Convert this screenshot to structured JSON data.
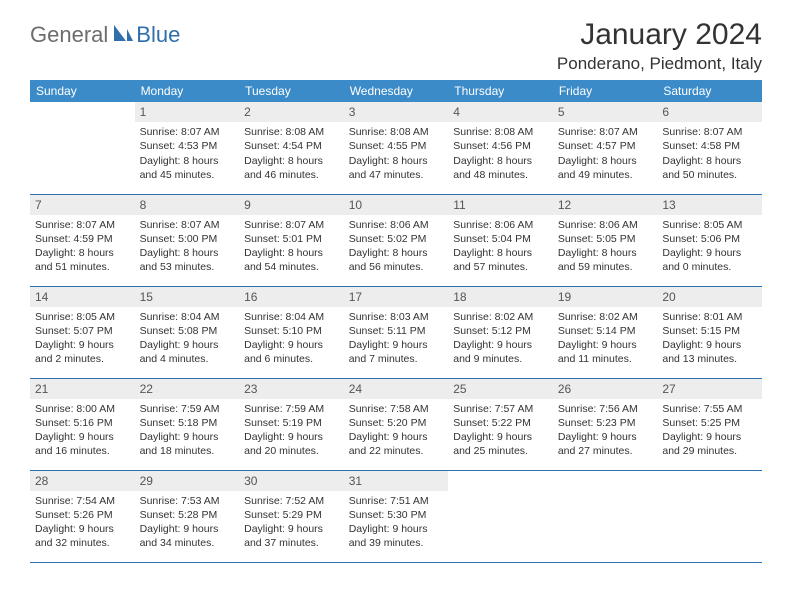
{
  "logo": {
    "text1": "General",
    "text2": "Blue"
  },
  "title": "January 2024",
  "location": "Ponderano, Piedmont, Italy",
  "weekdays": [
    "Sunday",
    "Monday",
    "Tuesday",
    "Wednesday",
    "Thursday",
    "Friday",
    "Saturday"
  ],
  "colors": {
    "header_bg": "#3b8bc9",
    "header_fg": "#ffffff",
    "daynum_bg": "#ededed",
    "border": "#2f6fab",
    "logo_gray": "#6d6d6d",
    "logo_blue": "#2f6fab"
  },
  "weeks": [
    [
      {
        "empty": true
      },
      {
        "n": "1",
        "sr": "Sunrise: 8:07 AM",
        "ss": "Sunset: 4:53 PM",
        "d1": "Daylight: 8 hours",
        "d2": "and 45 minutes."
      },
      {
        "n": "2",
        "sr": "Sunrise: 8:08 AM",
        "ss": "Sunset: 4:54 PM",
        "d1": "Daylight: 8 hours",
        "d2": "and 46 minutes."
      },
      {
        "n": "3",
        "sr": "Sunrise: 8:08 AM",
        "ss": "Sunset: 4:55 PM",
        "d1": "Daylight: 8 hours",
        "d2": "and 47 minutes."
      },
      {
        "n": "4",
        "sr": "Sunrise: 8:08 AM",
        "ss": "Sunset: 4:56 PM",
        "d1": "Daylight: 8 hours",
        "d2": "and 48 minutes."
      },
      {
        "n": "5",
        "sr": "Sunrise: 8:07 AM",
        "ss": "Sunset: 4:57 PM",
        "d1": "Daylight: 8 hours",
        "d2": "and 49 minutes."
      },
      {
        "n": "6",
        "sr": "Sunrise: 8:07 AM",
        "ss": "Sunset: 4:58 PM",
        "d1": "Daylight: 8 hours",
        "d2": "and 50 minutes."
      }
    ],
    [
      {
        "n": "7",
        "sr": "Sunrise: 8:07 AM",
        "ss": "Sunset: 4:59 PM",
        "d1": "Daylight: 8 hours",
        "d2": "and 51 minutes."
      },
      {
        "n": "8",
        "sr": "Sunrise: 8:07 AM",
        "ss": "Sunset: 5:00 PM",
        "d1": "Daylight: 8 hours",
        "d2": "and 53 minutes."
      },
      {
        "n": "9",
        "sr": "Sunrise: 8:07 AM",
        "ss": "Sunset: 5:01 PM",
        "d1": "Daylight: 8 hours",
        "d2": "and 54 minutes."
      },
      {
        "n": "10",
        "sr": "Sunrise: 8:06 AM",
        "ss": "Sunset: 5:02 PM",
        "d1": "Daylight: 8 hours",
        "d2": "and 56 minutes."
      },
      {
        "n": "11",
        "sr": "Sunrise: 8:06 AM",
        "ss": "Sunset: 5:04 PM",
        "d1": "Daylight: 8 hours",
        "d2": "and 57 minutes."
      },
      {
        "n": "12",
        "sr": "Sunrise: 8:06 AM",
        "ss": "Sunset: 5:05 PM",
        "d1": "Daylight: 8 hours",
        "d2": "and 59 minutes."
      },
      {
        "n": "13",
        "sr": "Sunrise: 8:05 AM",
        "ss": "Sunset: 5:06 PM",
        "d1": "Daylight: 9 hours",
        "d2": "and 0 minutes."
      }
    ],
    [
      {
        "n": "14",
        "sr": "Sunrise: 8:05 AM",
        "ss": "Sunset: 5:07 PM",
        "d1": "Daylight: 9 hours",
        "d2": "and 2 minutes."
      },
      {
        "n": "15",
        "sr": "Sunrise: 8:04 AM",
        "ss": "Sunset: 5:08 PM",
        "d1": "Daylight: 9 hours",
        "d2": "and 4 minutes."
      },
      {
        "n": "16",
        "sr": "Sunrise: 8:04 AM",
        "ss": "Sunset: 5:10 PM",
        "d1": "Daylight: 9 hours",
        "d2": "and 6 minutes."
      },
      {
        "n": "17",
        "sr": "Sunrise: 8:03 AM",
        "ss": "Sunset: 5:11 PM",
        "d1": "Daylight: 9 hours",
        "d2": "and 7 minutes."
      },
      {
        "n": "18",
        "sr": "Sunrise: 8:02 AM",
        "ss": "Sunset: 5:12 PM",
        "d1": "Daylight: 9 hours",
        "d2": "and 9 minutes."
      },
      {
        "n": "19",
        "sr": "Sunrise: 8:02 AM",
        "ss": "Sunset: 5:14 PM",
        "d1": "Daylight: 9 hours",
        "d2": "and 11 minutes."
      },
      {
        "n": "20",
        "sr": "Sunrise: 8:01 AM",
        "ss": "Sunset: 5:15 PM",
        "d1": "Daylight: 9 hours",
        "d2": "and 13 minutes."
      }
    ],
    [
      {
        "n": "21",
        "sr": "Sunrise: 8:00 AM",
        "ss": "Sunset: 5:16 PM",
        "d1": "Daylight: 9 hours",
        "d2": "and 16 minutes."
      },
      {
        "n": "22",
        "sr": "Sunrise: 7:59 AM",
        "ss": "Sunset: 5:18 PM",
        "d1": "Daylight: 9 hours",
        "d2": "and 18 minutes."
      },
      {
        "n": "23",
        "sr": "Sunrise: 7:59 AM",
        "ss": "Sunset: 5:19 PM",
        "d1": "Daylight: 9 hours",
        "d2": "and 20 minutes."
      },
      {
        "n": "24",
        "sr": "Sunrise: 7:58 AM",
        "ss": "Sunset: 5:20 PM",
        "d1": "Daylight: 9 hours",
        "d2": "and 22 minutes."
      },
      {
        "n": "25",
        "sr": "Sunrise: 7:57 AM",
        "ss": "Sunset: 5:22 PM",
        "d1": "Daylight: 9 hours",
        "d2": "and 25 minutes."
      },
      {
        "n": "26",
        "sr": "Sunrise: 7:56 AM",
        "ss": "Sunset: 5:23 PM",
        "d1": "Daylight: 9 hours",
        "d2": "and 27 minutes."
      },
      {
        "n": "27",
        "sr": "Sunrise: 7:55 AM",
        "ss": "Sunset: 5:25 PM",
        "d1": "Daylight: 9 hours",
        "d2": "and 29 minutes."
      }
    ],
    [
      {
        "n": "28",
        "sr": "Sunrise: 7:54 AM",
        "ss": "Sunset: 5:26 PM",
        "d1": "Daylight: 9 hours",
        "d2": "and 32 minutes."
      },
      {
        "n": "29",
        "sr": "Sunrise: 7:53 AM",
        "ss": "Sunset: 5:28 PM",
        "d1": "Daylight: 9 hours",
        "d2": "and 34 minutes."
      },
      {
        "n": "30",
        "sr": "Sunrise: 7:52 AM",
        "ss": "Sunset: 5:29 PM",
        "d1": "Daylight: 9 hours",
        "d2": "and 37 minutes."
      },
      {
        "n": "31",
        "sr": "Sunrise: 7:51 AM",
        "ss": "Sunset: 5:30 PM",
        "d1": "Daylight: 9 hours",
        "d2": "and 39 minutes."
      },
      {
        "empty": true
      },
      {
        "empty": true
      },
      {
        "empty": true
      }
    ]
  ]
}
